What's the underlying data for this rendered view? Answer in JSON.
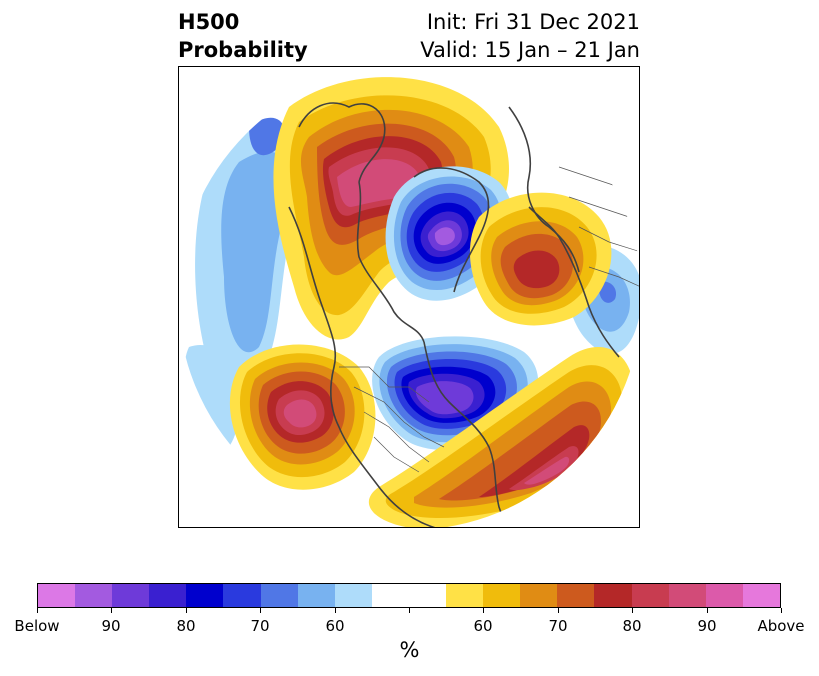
{
  "header": {
    "title_line1": "H500",
    "title_line2": "Probability",
    "init_label": "Init: Fri 31 Dec 2021",
    "valid_label": "Valid: 15 Jan – 21 Jan"
  },
  "map": {
    "projection": "north-polar-stereographic",
    "coastline_color": "#404040",
    "anomalies": [
      {
        "sign": "above",
        "region": "Alaska / western Canada arctic",
        "max_category": "90"
      },
      {
        "sign": "above",
        "region": "North Pacific off west coast of North America",
        "max_category": "90"
      },
      {
        "sign": "above",
        "region": "Western North Atlantic",
        "max_category": "80"
      },
      {
        "sign": "above",
        "region": "Scandinavia / northern Europe",
        "max_category": "80"
      },
      {
        "sign": "below",
        "region": "Arctic Ocean / Greenland",
        "max_category": "90"
      },
      {
        "sign": "below",
        "region": "Central / eastern Canada",
        "max_category": "90"
      },
      {
        "sign": "below",
        "region": "Central Asia / Russia",
        "max_category": "60"
      }
    ]
  },
  "colorbar": {
    "unit_label": "%",
    "tick_labels": [
      "Below",
      "90",
      "80",
      "70",
      "60",
      "",
      "60",
      "70",
      "80",
      "90",
      "Above"
    ],
    "colors": [
      "#dc78e6",
      "#a35ae0",
      "#6e3ad9",
      "#3a20d0",
      "#0000cd",
      "#2a3ade",
      "#5077e6",
      "#78b2f0",
      "#aedcfa",
      "#ffffff",
      "#ffffff",
      "#ffe146",
      "#f0bc0c",
      "#e08c14",
      "#cd5a1e",
      "#b42828",
      "#c83c50",
      "#d24b78",
      "#dc5aaa",
      "#e678dc"
    ]
  }
}
